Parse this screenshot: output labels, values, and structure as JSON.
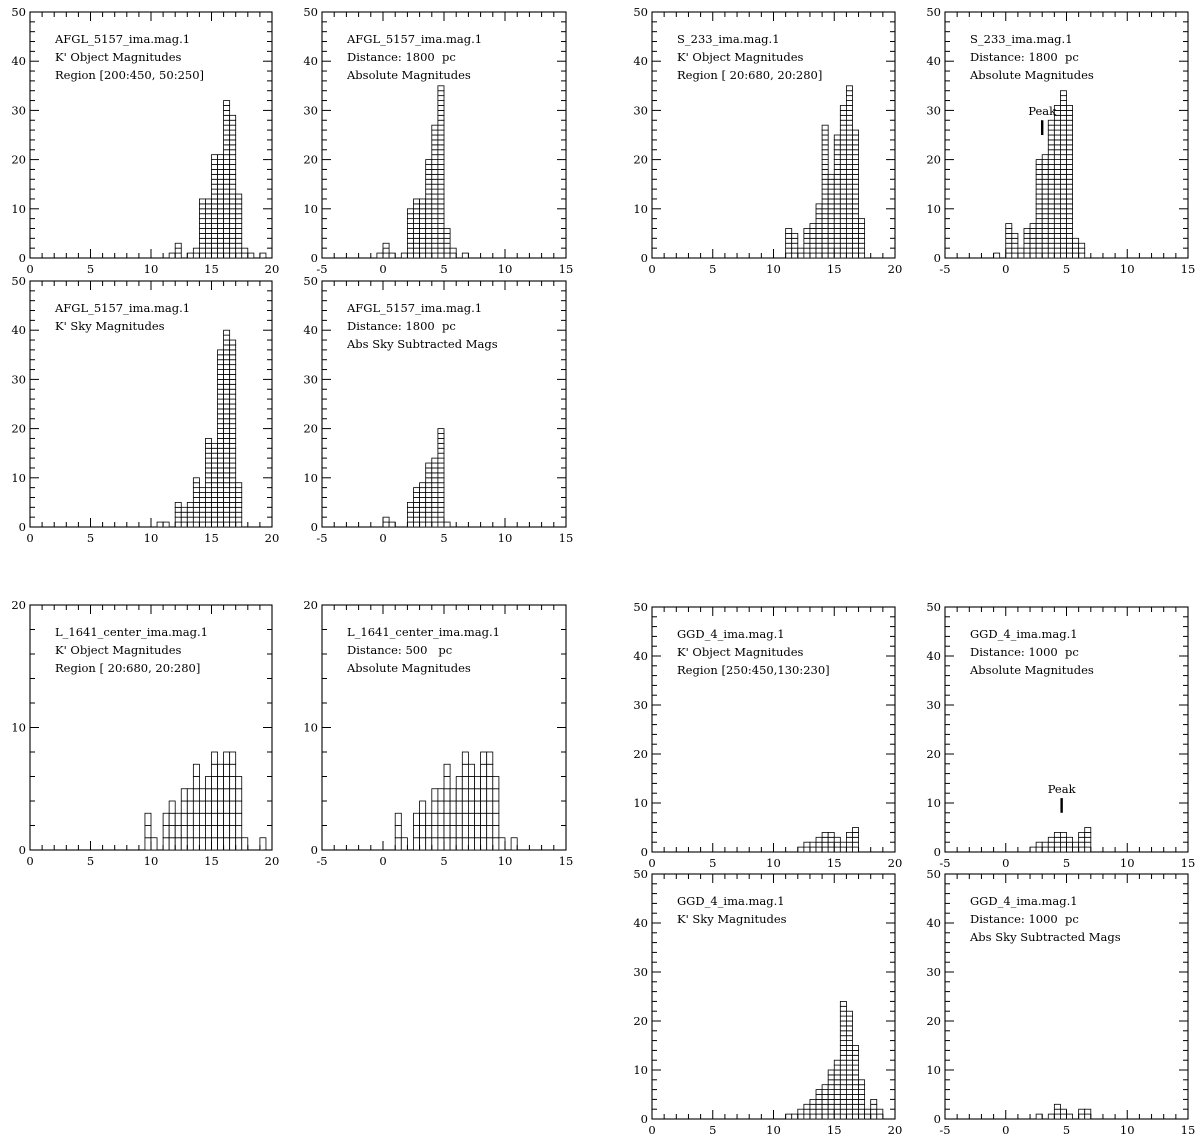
{
  "chart_data": [
    {
      "id": "afgl-k-object",
      "type": "bar",
      "xlim": [
        0,
        20
      ],
      "xticks": [
        "0",
        "5",
        "10",
        "15",
        "20"
      ],
      "ylim": [
        0,
        50
      ],
      "yticks": [
        "0",
        "10",
        "20",
        "30",
        "40",
        "50"
      ],
      "bin_width": 0.5,
      "annotations": [
        "AFGL_5157_ima.mag.1",
        "K' Object Magnitudes",
        "Region [200:450, 50:250]"
      ],
      "bins": [
        {
          "x": 11.5,
          "count": 1
        },
        {
          "x": 12.0,
          "count": 3
        },
        {
          "x": 13.0,
          "count": 1
        },
        {
          "x": 13.5,
          "count": 2
        },
        {
          "x": 14.0,
          "count": 12
        },
        {
          "x": 14.5,
          "count": 12
        },
        {
          "x": 15.0,
          "count": 21
        },
        {
          "x": 15.5,
          "count": 21
        },
        {
          "x": 16.0,
          "count": 32
        },
        {
          "x": 16.5,
          "count": 29
        },
        {
          "x": 17.0,
          "count": 13
        },
        {
          "x": 17.5,
          "count": 2
        },
        {
          "x": 18.0,
          "count": 1
        },
        {
          "x": 19.0,
          "count": 1
        }
      ]
    },
    {
      "id": "afgl-abs",
      "type": "bar",
      "xlim": [
        -5,
        15
      ],
      "xticks": [
        "-5",
        "0",
        "5",
        "10",
        "15"
      ],
      "ylim": [
        0,
        50
      ],
      "yticks": [
        "0",
        "10",
        "20",
        "30",
        "40",
        "50"
      ],
      "bin_width": 0.5,
      "annotations": [
        "AFGL_5157_ima.mag.1",
        "Distance: 1800  pc",
        "Absolute Magnitudes"
      ],
      "bins": [
        {
          "x": -0.5,
          "count": 1
        },
        {
          "x": 0.0,
          "count": 3
        },
        {
          "x": 0.5,
          "count": 1
        },
        {
          "x": 1.5,
          "count": 1
        },
        {
          "x": 2.0,
          "count": 10
        },
        {
          "x": 2.5,
          "count": 12
        },
        {
          "x": 3.0,
          "count": 12
        },
        {
          "x": 3.5,
          "count": 20
        },
        {
          "x": 4.0,
          "count": 27
        },
        {
          "x": 4.5,
          "count": 35
        },
        {
          "x": 5.0,
          "count": 6
        },
        {
          "x": 5.5,
          "count": 2
        },
        {
          "x": 6.5,
          "count": 1
        }
      ]
    },
    {
      "id": "s233-k-object",
      "type": "bar",
      "xlim": [
        0,
        20
      ],
      "xticks": [
        "0",
        "5",
        "10",
        "15",
        "20"
      ],
      "ylim": [
        0,
        50
      ],
      "yticks": [
        "0",
        "10",
        "20",
        "30",
        "40",
        "50"
      ],
      "bin_width": 0.5,
      "annotations": [
        "S_233_ima.mag.1",
        "K' Object Magnitudes",
        "Region [ 20:680, 20:280]"
      ],
      "bins": [
        {
          "x": 11.0,
          "count": 6
        },
        {
          "x": 11.5,
          "count": 5
        },
        {
          "x": 12.0,
          "count": 2
        },
        {
          "x": 12.5,
          "count": 6
        },
        {
          "x": 13.0,
          "count": 7
        },
        {
          "x": 13.5,
          "count": 11
        },
        {
          "x": 14.0,
          "count": 27
        },
        {
          "x": 14.5,
          "count": 17
        },
        {
          "x": 15.0,
          "count": 25
        },
        {
          "x": 15.5,
          "count": 31
        },
        {
          "x": 16.0,
          "count": 35
        },
        {
          "x": 16.5,
          "count": 26
        },
        {
          "x": 17.0,
          "count": 8
        }
      ]
    },
    {
      "id": "s233-abs",
      "type": "bar",
      "xlim": [
        -5,
        15
      ],
      "xticks": [
        "-5",
        "0",
        "5",
        "10",
        "15"
      ],
      "ylim": [
        0,
        50
      ],
      "yticks": [
        "0",
        "10",
        "20",
        "30",
        "40",
        "50"
      ],
      "bin_width": 0.5,
      "annotations": [
        "S_233_ima.mag.1",
        "Distance: 1800  pc",
        "Absolute Magnitudes"
      ],
      "peak": {
        "label": "Peak",
        "x": 3.0,
        "y_from": 25,
        "y_to": 28
      },
      "bins": [
        {
          "x": -1.0,
          "count": 1
        },
        {
          "x": 0.0,
          "count": 7
        },
        {
          "x": 0.5,
          "count": 5
        },
        {
          "x": 1.0,
          "count": 2
        },
        {
          "x": 1.5,
          "count": 6
        },
        {
          "x": 2.0,
          "count": 7
        },
        {
          "x": 2.5,
          "count": 20
        },
        {
          "x": 3.0,
          "count": 21
        },
        {
          "x": 3.5,
          "count": 28
        },
        {
          "x": 4.0,
          "count": 31
        },
        {
          "x": 4.5,
          "count": 34
        },
        {
          "x": 5.0,
          "count": 31
        },
        {
          "x": 5.5,
          "count": 4
        },
        {
          "x": 6.0,
          "count": 3
        }
      ]
    },
    {
      "id": "afgl-k-sky",
      "type": "bar",
      "xlim": [
        0,
        20
      ],
      "xticks": [
        "0",
        "5",
        "10",
        "15",
        "20"
      ],
      "ylim": [
        0,
        50
      ],
      "yticks": [
        "0",
        "10",
        "20",
        "30",
        "40",
        "50"
      ],
      "bin_width": 0.5,
      "annotations": [
        "AFGL_5157_ima.mag.1",
        "K' Sky Magnitudes"
      ],
      "bins": [
        {
          "x": 10.5,
          "count": 1
        },
        {
          "x": 11.0,
          "count": 1
        },
        {
          "x": 12.0,
          "count": 5
        },
        {
          "x": 12.5,
          "count": 4
        },
        {
          "x": 13.0,
          "count": 5
        },
        {
          "x": 13.5,
          "count": 10
        },
        {
          "x": 14.0,
          "count": 8
        },
        {
          "x": 14.5,
          "count": 18
        },
        {
          "x": 15.0,
          "count": 17
        },
        {
          "x": 15.5,
          "count": 36
        },
        {
          "x": 16.0,
          "count": 40
        },
        {
          "x": 16.5,
          "count": 38
        },
        {
          "x": 17.0,
          "count": 9
        }
      ]
    },
    {
      "id": "afgl-abs-sky",
      "type": "bar",
      "xlim": [
        -5,
        15
      ],
      "xticks": [
        "-5",
        "0",
        "5",
        "10",
        "15"
      ],
      "ylim": [
        0,
        50
      ],
      "yticks": [
        "0",
        "10",
        "20",
        "30",
        "40",
        "50"
      ],
      "bin_width": 0.5,
      "annotations": [
        "AFGL_5157_ima.mag.1",
        "Distance: 1800  pc",
        "Abs Sky Subtracted Mags"
      ],
      "bins": [
        {
          "x": 0.0,
          "count": 2
        },
        {
          "x": 0.5,
          "count": 1
        },
        {
          "x": 2.0,
          "count": 5
        },
        {
          "x": 2.5,
          "count": 8
        },
        {
          "x": 3.0,
          "count": 9
        },
        {
          "x": 3.5,
          "count": 13
        },
        {
          "x": 4.0,
          "count": 14
        },
        {
          "x": 4.5,
          "count": 20
        },
        {
          "x": 5.0,
          "count": 1
        }
      ]
    },
    {
      "id": "l1641-k-object",
      "type": "bar",
      "xlim": [
        0,
        20
      ],
      "xticks": [
        "0",
        "5",
        "10",
        "15",
        "20"
      ],
      "ylim": [
        0,
        20
      ],
      "yticks": [
        "0",
        "10",
        "20"
      ],
      "bin_width": 0.5,
      "annotations": [
        "L_1641_center_ima.mag.1",
        "K' Object Magnitudes",
        "Region [ 20:680, 20:280]"
      ],
      "bins": [
        {
          "x": 9.5,
          "count": 3
        },
        {
          "x": 10.0,
          "count": 1
        },
        {
          "x": 11.0,
          "count": 3
        },
        {
          "x": 11.5,
          "count": 4
        },
        {
          "x": 12.0,
          "count": 3
        },
        {
          "x": 12.5,
          "count": 5
        },
        {
          "x": 13.0,
          "count": 5
        },
        {
          "x": 13.5,
          "count": 7
        },
        {
          "x": 14.0,
          "count": 5
        },
        {
          "x": 14.5,
          "count": 6
        },
        {
          "x": 15.0,
          "count": 8
        },
        {
          "x": 15.5,
          "count": 7
        },
        {
          "x": 16.0,
          "count": 8
        },
        {
          "x": 16.5,
          "count": 8
        },
        {
          "x": 17.0,
          "count": 6
        },
        {
          "x": 17.5,
          "count": 1
        },
        {
          "x": 19.0,
          "count": 1
        }
      ]
    },
    {
      "id": "l1641-abs",
      "type": "bar",
      "xlim": [
        -5,
        15
      ],
      "xticks": [
        "-5",
        "0",
        "5",
        "10",
        "15"
      ],
      "ylim": [
        0,
        20
      ],
      "yticks": [
        "0",
        "10",
        "20"
      ],
      "bin_width": 0.5,
      "annotations": [
        "L_1641_center_ima.mag.1",
        "Distance: 500   pc",
        "Absolute Magnitudes"
      ],
      "bins": [
        {
          "x": 1.0,
          "count": 3
        },
        {
          "x": 1.5,
          "count": 1
        },
        {
          "x": 2.5,
          "count": 3
        },
        {
          "x": 3.0,
          "count": 4
        },
        {
          "x": 3.5,
          "count": 3
        },
        {
          "x": 4.0,
          "count": 5
        },
        {
          "x": 4.5,
          "count": 5
        },
        {
          "x": 5.0,
          "count": 7
        },
        {
          "x": 5.5,
          "count": 5
        },
        {
          "x": 6.0,
          "count": 6
        },
        {
          "x": 6.5,
          "count": 8
        },
        {
          "x": 7.0,
          "count": 7
        },
        {
          "x": 7.5,
          "count": 6
        },
        {
          "x": 8.0,
          "count": 8
        },
        {
          "x": 8.5,
          "count": 8
        },
        {
          "x": 9.0,
          "count": 6
        },
        {
          "x": 9.5,
          "count": 1
        },
        {
          "x": 10.5,
          "count": 1
        }
      ]
    },
    {
      "id": "ggd4-k-object",
      "type": "bar",
      "xlim": [
        0,
        20
      ],
      "xticks": [
        "0",
        "5",
        "10",
        "15",
        "20"
      ],
      "ylim": [
        0,
        50
      ],
      "yticks": [
        "0",
        "10",
        "20",
        "30",
        "40",
        "50"
      ],
      "bin_width": 0.5,
      "annotations": [
        "GGD_4_ima.mag.1",
        "K' Object Magnitudes",
        "Region [250:450,130:230]"
      ],
      "bins": [
        {
          "x": 12.0,
          "count": 1
        },
        {
          "x": 12.5,
          "count": 2
        },
        {
          "x": 13.0,
          "count": 2
        },
        {
          "x": 13.5,
          "count": 3
        },
        {
          "x": 14.0,
          "count": 4
        },
        {
          "x": 14.5,
          "count": 4
        },
        {
          "x": 15.0,
          "count": 3
        },
        {
          "x": 15.5,
          "count": 2
        },
        {
          "x": 16.0,
          "count": 4
        },
        {
          "x": 16.5,
          "count": 5
        }
      ]
    },
    {
      "id": "ggd4-abs",
      "type": "bar",
      "xlim": [
        -5,
        15
      ],
      "xticks": [
        "-5",
        "0",
        "5",
        "10",
        "15"
      ],
      "ylim": [
        0,
        50
      ],
      "yticks": [
        "0",
        "10",
        "20",
        "30",
        "40",
        "50"
      ],
      "bin_width": 0.5,
      "annotations": [
        "GGD_4_ima.mag.1",
        "Distance: 1000  pc",
        "Absolute Magnitudes"
      ],
      "peak": {
        "label": "Peak",
        "x": 4.6,
        "y_from": 8,
        "y_to": 11
      },
      "bins": [
        {
          "x": 2.0,
          "count": 1
        },
        {
          "x": 2.5,
          "count": 2
        },
        {
          "x": 3.0,
          "count": 2
        },
        {
          "x": 3.5,
          "count": 3
        },
        {
          "x": 4.0,
          "count": 4
        },
        {
          "x": 4.5,
          "count": 4
        },
        {
          "x": 5.0,
          "count": 3
        },
        {
          "x": 5.5,
          "count": 2
        },
        {
          "x": 6.0,
          "count": 4
        },
        {
          "x": 6.5,
          "count": 5
        }
      ]
    },
    {
      "id": "ggd4-k-sky",
      "type": "bar",
      "xlim": [
        0,
        20
      ],
      "xticks": [
        "0",
        "5",
        "10",
        "15",
        "20"
      ],
      "ylim": [
        0,
        50
      ],
      "yticks": [
        "0",
        "10",
        "20",
        "30",
        "40",
        "50"
      ],
      "bin_width": 0.5,
      "annotations": [
        "GGD_4_ima.mag.1",
        "K' Sky Magnitudes"
      ],
      "bins": [
        {
          "x": 11.0,
          "count": 1
        },
        {
          "x": 11.5,
          "count": 1
        },
        {
          "x": 12.0,
          "count": 2
        },
        {
          "x": 12.5,
          "count": 3
        },
        {
          "x": 13.0,
          "count": 4
        },
        {
          "x": 13.5,
          "count": 6
        },
        {
          "x": 14.0,
          "count": 7
        },
        {
          "x": 14.5,
          "count": 10
        },
        {
          "x": 15.0,
          "count": 12
        },
        {
          "x": 15.5,
          "count": 24
        },
        {
          "x": 16.0,
          "count": 22
        },
        {
          "x": 16.5,
          "count": 15
        },
        {
          "x": 17.0,
          "count": 8
        },
        {
          "x": 17.5,
          "count": 2
        },
        {
          "x": 18.0,
          "count": 4
        },
        {
          "x": 18.5,
          "count": 2
        }
      ]
    },
    {
      "id": "ggd4-abs-sky",
      "type": "bar",
      "xlim": [
        -5,
        15
      ],
      "xticks": [
        "-5",
        "0",
        "5",
        "10",
        "15"
      ],
      "ylim": [
        0,
        50
      ],
      "yticks": [
        "0",
        "10",
        "20",
        "30",
        "40",
        "50"
      ],
      "bin_width": 0.5,
      "annotations": [
        "GGD_4_ima.mag.1",
        "Distance: 1000  pc",
        "Abs Sky Subtracted Mags"
      ],
      "bins": [
        {
          "x": 2.5,
          "count": 1
        },
        {
          "x": 3.5,
          "count": 1
        },
        {
          "x": 4.0,
          "count": 3
        },
        {
          "x": 4.5,
          "count": 2
        },
        {
          "x": 5.0,
          "count": 1
        },
        {
          "x": 6.0,
          "count": 2
        },
        {
          "x": 6.5,
          "count": 2
        }
      ]
    }
  ]
}
